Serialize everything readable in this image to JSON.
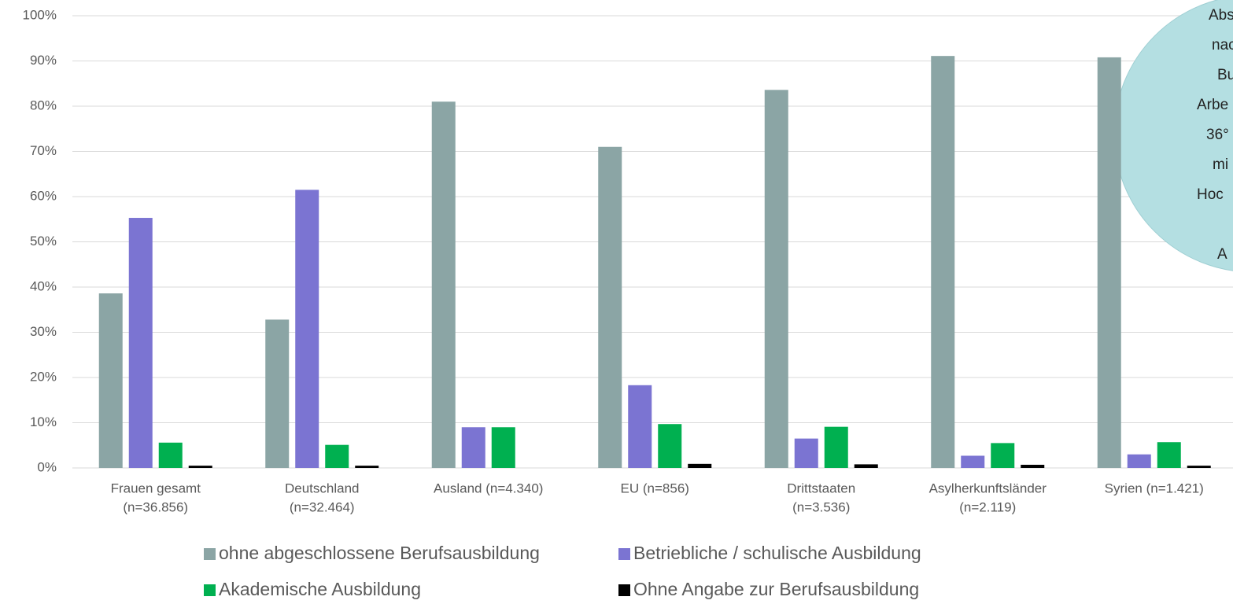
{
  "chart_data": {
    "type": "bar",
    "categories": [
      [
        "Frauen gesamt",
        "(n=36.856)"
      ],
      [
        "Deutschland",
        "(n=32.464)"
      ],
      [
        "Ausland (n=4.340)"
      ],
      [
        "EU (n=856)"
      ],
      [
        "Drittstaaten",
        "(n=3.536)"
      ],
      [
        "Asylherkunftsländer",
        "(n=2.119)"
      ],
      [
        "Syrien (n=1.421)"
      ]
    ],
    "series": [
      {
        "name": "ohne abgeschlossene Berufsausbildung",
        "color": "#8ba5a5",
        "values": [
          38.6,
          32.8,
          81,
          71,
          83.6,
          91.1,
          90.8
        ]
      },
      {
        "name": "Betriebliche / schulische Ausbildung",
        "color": "#7b74d2",
        "values": [
          55.3,
          61.5,
          9,
          18.3,
          6.5,
          2.7,
          3.0
        ]
      },
      {
        "name": "Akademische Ausbildung",
        "color": "#00b050",
        "values": [
          5.6,
          5.1,
          9,
          9.7,
          9.1,
          5.5,
          5.7
        ]
      },
      {
        "name": "Ohne Angabe zur Berufsausbildung",
        "color": "#000000",
        "values": [
          0.5,
          0.5,
          0,
          0.9,
          0.8,
          0.7,
          0.5
        ]
      }
    ],
    "ylim": [
      0,
      100
    ],
    "yticks": [
      {
        "value": 0,
        "label": "0%"
      },
      {
        "value": 10,
        "label": "10%"
      },
      {
        "value": 20,
        "label": "20%"
      },
      {
        "value": 30,
        "label": "30%"
      },
      {
        "value": 40,
        "label": "40%"
      },
      {
        "value": 50,
        "label": "50%"
      },
      {
        "value": 60,
        "label": "60%"
      },
      {
        "value": 70,
        "label": "70%"
      },
      {
        "value": 80,
        "label": "80%"
      },
      {
        "value": 90,
        "label": "90%"
      },
      {
        "value": 100,
        "label": "100%"
      }
    ],
    "grid": true,
    "legend": "bottom",
    "annotation": [
      "Abs",
      "nac",
      "Bu",
      "Arbe",
      "36°",
      "mi",
      "Hoc",
      "",
      "A"
    ]
  }
}
